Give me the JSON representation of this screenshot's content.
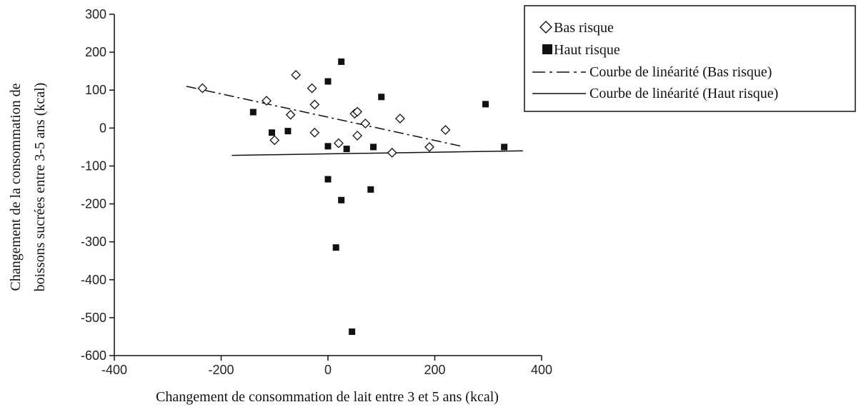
{
  "chart_data": {
    "type": "scatter",
    "xlabel": "Changement de consommation de lait entre 3 et 5 ans (kcal)",
    "ylabel_lines": [
      "Changement de la consommation de",
      "boissons sucrées entre 3-5 ans (kcal)"
    ],
    "xlim": [
      -400,
      400
    ],
    "ylim": [
      -600,
      300
    ],
    "x_ticks": [
      -400,
      -200,
      0,
      200,
      400
    ],
    "y_ticks": [
      300,
      200,
      100,
      0,
      -100,
      -200,
      -300,
      -400,
      -500,
      -600
    ],
    "grid": false,
    "legend_position": "top-right",
    "legend": [
      {
        "label": "Bas risque",
        "marker": "diamond-open"
      },
      {
        "label": "Haut risque",
        "marker": "square-filled"
      },
      {
        "label": "Courbe de linéarité (Bas risque)",
        "line": "dash-dot"
      },
      {
        "label": "Courbe de linéarité (Haut risque)",
        "line": "solid"
      }
    ],
    "series": [
      {
        "name": "Bas risque",
        "marker": "diamond-open",
        "points": [
          [
            -235,
            105
          ],
          [
            -115,
            72
          ],
          [
            -100,
            -32
          ],
          [
            -70,
            35
          ],
          [
            -60,
            140
          ],
          [
            -30,
            105
          ],
          [
            -25,
            62
          ],
          [
            -25,
            -12
          ],
          [
            20,
            -40
          ],
          [
            50,
            38
          ],
          [
            55,
            43
          ],
          [
            55,
            -20
          ],
          [
            70,
            12
          ],
          [
            120,
            -65
          ],
          [
            135,
            25
          ],
          [
            190,
            -50
          ],
          [
            220,
            -5
          ]
        ]
      },
      {
        "name": "Haut risque",
        "marker": "square-filled",
        "points": [
          [
            -140,
            42
          ],
          [
            -105,
            -12
          ],
          [
            -75,
            -8
          ],
          [
            0,
            123
          ],
          [
            0,
            -48
          ],
          [
            0,
            -135
          ],
          [
            25,
            175
          ],
          [
            25,
            -190
          ],
          [
            15,
            -315
          ],
          [
            35,
            -55
          ],
          [
            45,
            -537
          ],
          [
            80,
            -162
          ],
          [
            85,
            -50
          ],
          [
            100,
            82
          ],
          [
            295,
            63
          ],
          [
            330,
            -50
          ]
        ]
      }
    ],
    "fit_lines": [
      {
        "name": "Courbe de linéarité (Bas risque)",
        "style": "dash-dot",
        "x": [
          -265,
          250
        ],
        "y": [
          110,
          -48
        ]
      },
      {
        "name": "Courbe de linéarité (Haut risque)",
        "style": "solid",
        "x": [
          -180,
          365
        ],
        "y": [
          -72,
          -60
        ]
      }
    ]
  }
}
